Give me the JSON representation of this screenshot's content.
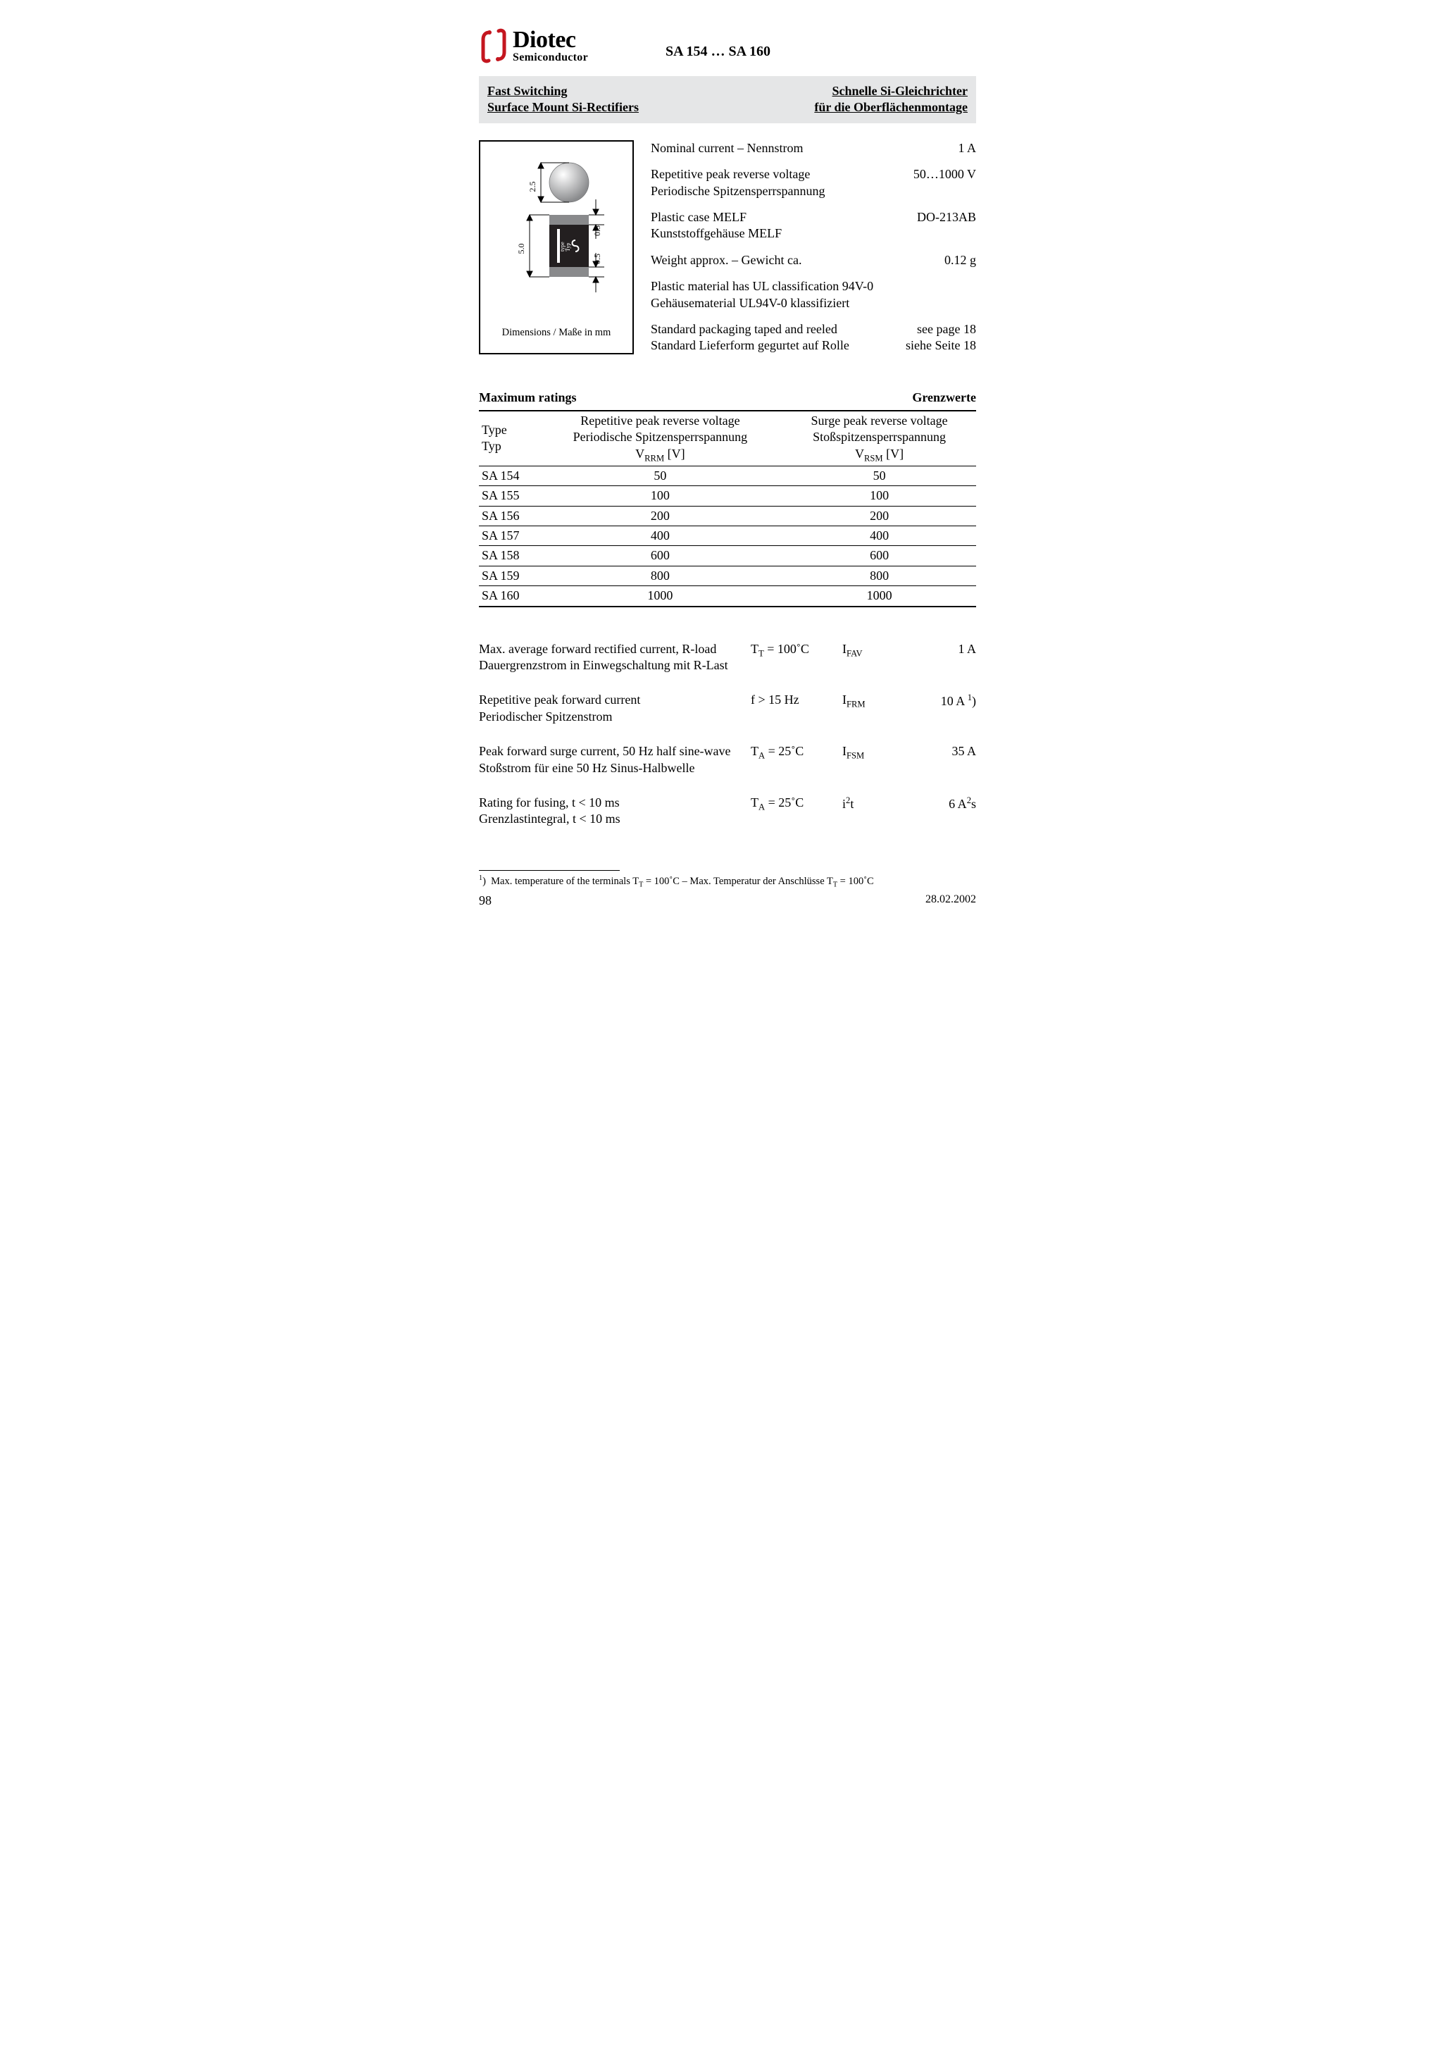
{
  "brand": {
    "name": "Diotec",
    "sub": "Semiconductor",
    "logo_color": "#c4161f"
  },
  "doc_title": "SA 154 … SA 160",
  "title_bar": {
    "left1": "Fast Switching",
    "left2": "Surface Mount Si-Rectifiers",
    "right1": "Schnelle Si-Gleichrichter",
    "right2": "für die Oberflächenmontage"
  },
  "diagram": {
    "caption": "Dimensions / Maße in mm",
    "labels": {
      "d25": "2.5",
      "d50": "5.0",
      "d05a": "0.5",
      "d05b": "0.5",
      "type_typ": "type\nTyp"
    },
    "colors": {
      "ball": "#a2a3a5",
      "ball_hi": "#ffffff",
      "body": "#231f20",
      "cap": "#898a8c",
      "mark": "#ffffff",
      "line": "#000000"
    }
  },
  "specs": [
    {
      "label_en": "Nominal current – Nennstrom",
      "label_de": "",
      "value": "1 A"
    },
    {
      "label_en": "Repetitive peak reverse voltage",
      "label_de": "Periodische Spitzensperrspannung",
      "value": "50…1000 V"
    },
    {
      "label_en": "Plastic case MELF",
      "label_de": "Kunststoffgehäuse MELF",
      "value": "DO-213AB"
    },
    {
      "label_en": "Weight approx. – Gewicht ca.",
      "label_de": "",
      "value": "0.12 g"
    },
    {
      "label_en": "Plastic material has UL classification 94V-0",
      "label_de": "Gehäusematerial UL94V-0 klassifiziert",
      "value": ""
    },
    {
      "label_en": "Standard packaging taped and reeled",
      "label_de": "Standard Lieferform gegurtet auf Rolle",
      "value": "see page 18\nsiehe Seite 18"
    }
  ],
  "ratings": {
    "heading_en": "Maximum ratings",
    "heading_de": "Grenzwerte",
    "columns": {
      "type_en": "Type",
      "type_de": "Typ",
      "vrrm_en": "Repetitive peak reverse voltage",
      "vrrm_de": "Periodische Spitzensperrspannung",
      "vrrm_sym": "V",
      "vrrm_sub": "RRM",
      "vrrm_unit": " [V]",
      "vrsm_en": "Surge peak reverse voltage",
      "vrsm_de": "Stoßspitzensperrspannung",
      "vrsm_sym": "V",
      "vrsm_sub": "RSM",
      "vrsm_unit": " [V]"
    },
    "rows": [
      {
        "type": "SA 154",
        "vrrm": "50",
        "vrsm": "50"
      },
      {
        "type": "SA 155",
        "vrrm": "100",
        "vrsm": "100"
      },
      {
        "type": "SA 156",
        "vrrm": "200",
        "vrsm": "200"
      },
      {
        "type": "SA 157",
        "vrrm": "400",
        "vrsm": "400"
      },
      {
        "type": "SA 158",
        "vrrm": "600",
        "vrsm": "600"
      },
      {
        "type": "SA 159",
        "vrrm": "800",
        "vrsm": "800"
      },
      {
        "type": "SA 160",
        "vrrm": "1000",
        "vrsm": "1000"
      }
    ]
  },
  "params": [
    {
      "desc_en": "Max. average forward rectified current, R-load",
      "desc_de": "Dauergrenzstrom in Einwegschaltung mit R-Last",
      "cond_html": "T<sub>T</sub> = 100˚C",
      "sym_html": "I<sub>FAV</sub>",
      "val_html": "1 A"
    },
    {
      "desc_en": "Repetitive peak forward current",
      "desc_de": "Periodischer Spitzenstrom",
      "cond_html": "f > 15 Hz",
      "sym_html": "I<sub>FRM</sub>",
      "val_html": "10 A <sup>1</sup>)"
    },
    {
      "desc_en": "Peak forward surge current, 50 Hz half sine-wave",
      "desc_de": "Stoßstrom für eine 50 Hz Sinus-Halbwelle",
      "cond_html": "T<sub>A</sub> = 25˚C",
      "sym_html": "I<sub>FSM</sub>",
      "val_html": "35 A"
    },
    {
      "desc_en": "Rating for fusing, t < 10 ms",
      "desc_de": "Grenzlastintegral, t < 10 ms",
      "cond_html": "T<sub>A</sub> = 25˚C",
      "sym_html": "i<sup>2</sup>t",
      "val_html": "6 A<sup>2</sup>s"
    }
  ],
  "footnote_html": "<sup>1</sup>)&nbsp;&nbsp;Max. temperature of the terminals T<sub>T</sub> = 100˚C – Max. Temperatur der Anschlüsse T<sub>T</sub> = 100˚C",
  "footer": {
    "page": "98",
    "date": "28.02.2002"
  }
}
